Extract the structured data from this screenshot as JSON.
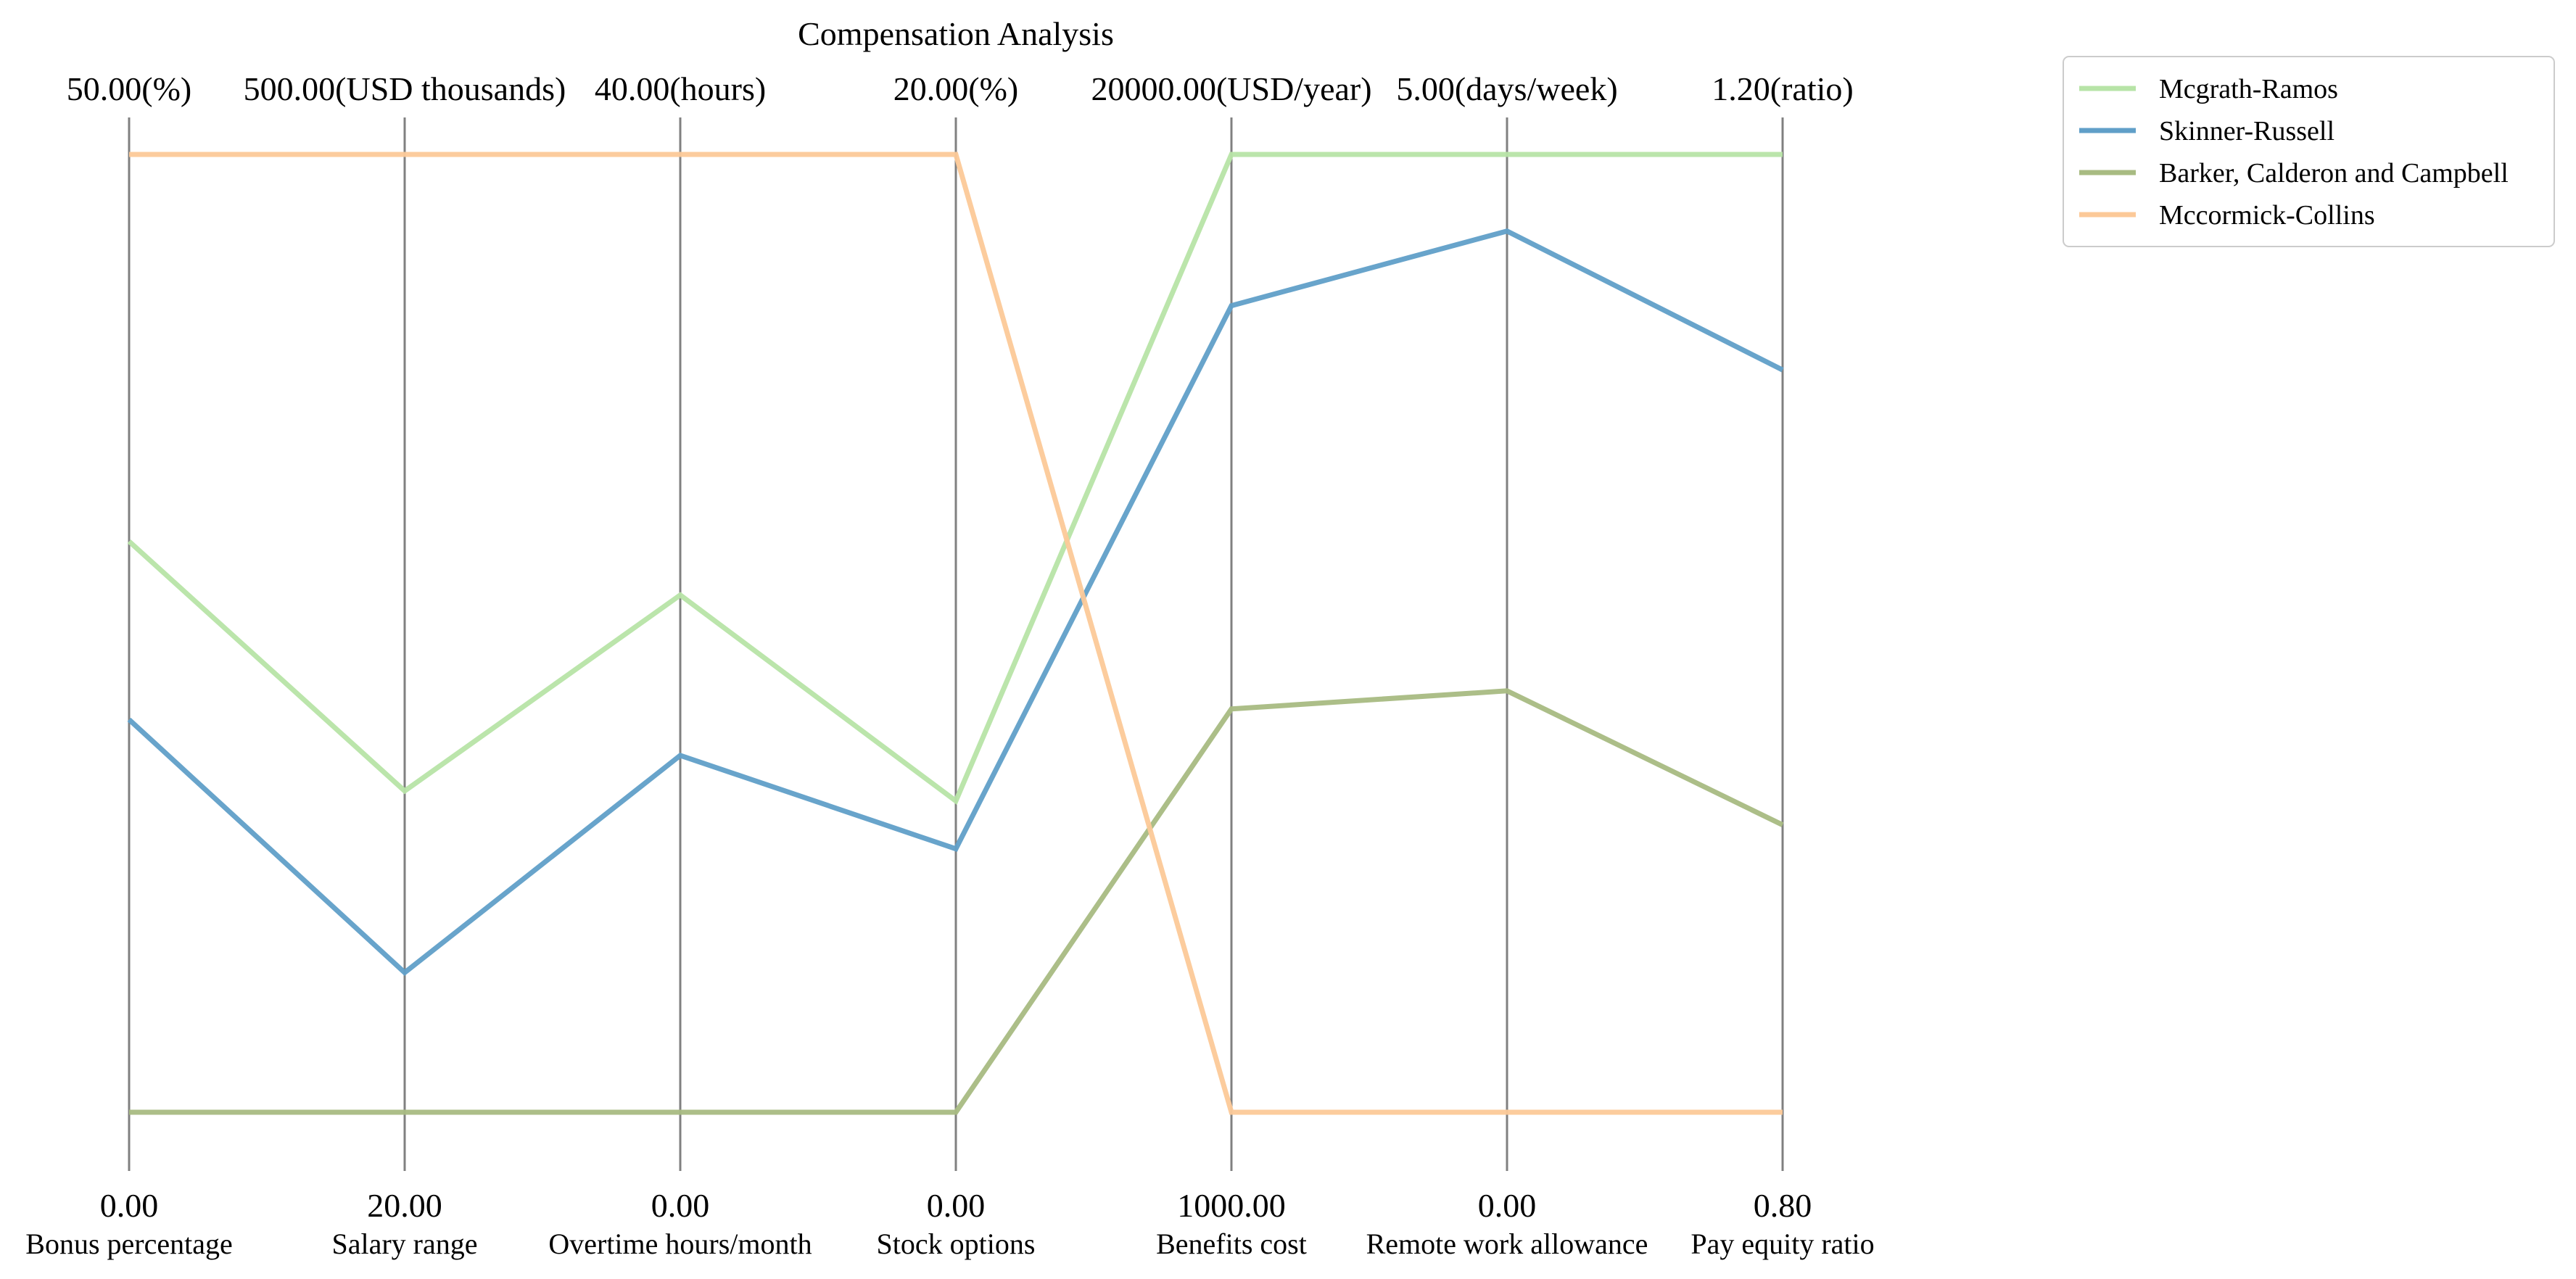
{
  "chart_data": {
    "type": "parallel_coordinates",
    "title": "Compensation Analysis",
    "axes": [
      {
        "name": "Bonus percentage",
        "min": 0,
        "max": 50,
        "min_label": "0.00",
        "max_label": "50.00(%)"
      },
      {
        "name": "Salary range",
        "min": 20,
        "max": 500,
        "min_label": "20.00",
        "max_label": "500.00(USD thousands)"
      },
      {
        "name": "Overtime hours/month",
        "min": 0,
        "max": 40,
        "min_label": "0.00",
        "max_label": "40.00(hours)"
      },
      {
        "name": "Stock options",
        "min": 0,
        "max": 20,
        "min_label": "0.00",
        "max_label": "20.00(%)"
      },
      {
        "name": "Benefits cost",
        "min": 1000,
        "max": 20000,
        "min_label": "1000.00",
        "max_label": "20000.00(USD/year)"
      },
      {
        "name": "Remote work allowance",
        "min": 0,
        "max": 5,
        "min_label": "0.00",
        "max_label": "5.00(days/week)"
      },
      {
        "name": "Pay equity ratio",
        "min": 0.8,
        "max": 1.2,
        "min_label": "0.80",
        "max_label": "1.20(ratio)"
      }
    ],
    "series": [
      {
        "name": "Mcgrath-Ramos",
        "color": "#b7e4a7",
        "values": [
          29.8,
          181,
          21.6,
          6.5,
          20000,
          5.0,
          1.2
        ]
      },
      {
        "name": "Skinner-Russell",
        "color": "#609fc8",
        "values": [
          20.5,
          90,
          14.9,
          5.5,
          17000,
          4.6,
          1.11
        ]
      },
      {
        "name": "Barker, Calderon and Campbell",
        "color": "#a8bb82",
        "values": [
          0,
          20,
          0,
          0,
          9000,
          2.2,
          0.92
        ]
      },
      {
        "name": "Mccormick-Collins",
        "color": "#fcc998",
        "values": [
          50,
          500,
          40,
          20,
          1000,
          0,
          0.8
        ]
      }
    ],
    "legend_position": "top-right",
    "grid": false
  }
}
